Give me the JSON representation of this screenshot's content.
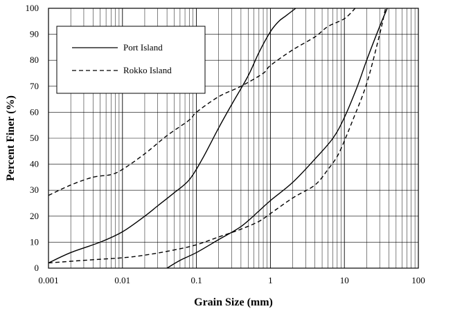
{
  "chart_data": {
    "type": "line",
    "xlabel": "Grain Size (mm)",
    "ylabel": "Percent Finer (%)",
    "xscale": "log",
    "xlim": [
      0.001,
      100
    ],
    "ylim": [
      0,
      100
    ],
    "grid": "on",
    "legend_placement": "top-left",
    "x_tick_labels": [
      "0.001",
      "0.01",
      "0.1",
      "1",
      "10",
      "100"
    ],
    "y_tick_labels": [
      "0",
      "10",
      "20",
      "30",
      "40",
      "50",
      "60",
      "70",
      "80",
      "90",
      "100"
    ],
    "series": [
      {
        "name": "Port Island",
        "style": "solid",
        "color": "#000000",
        "curves": [
          {
            "x": [
              0.001,
              0.002,
              0.005,
              0.01,
              0.02,
              0.03,
              0.05,
              0.08,
              0.12,
              0.2,
              0.3,
              0.5,
              0.7,
              1.0,
              1.3,
              1.6,
              2.2
            ],
            "y": [
              2,
              6,
              10,
              14,
              20,
              24,
              29,
              34,
              42,
              54,
              63,
              74,
              83,
              91,
              95,
              97,
              100
            ]
          },
          {
            "x": [
              0.04,
              0.06,
              0.1,
              0.2,
              0.4,
              0.7,
              1.0,
              2.0,
              4.0,
              7.0,
              10.0,
              15.0,
              20.0,
              30.0,
              38.0
            ],
            "y": [
              0,
              3,
              6,
              11,
              16,
              22,
              26,
              33,
              42,
              50,
              58,
              70,
              80,
              93,
              100
            ]
          }
        ]
      },
      {
        "name": "Rokko Island",
        "style": "dashed",
        "color": "#000000",
        "curves": [
          {
            "x": [
              0.001,
              0.002,
              0.004,
              0.007,
              0.01,
              0.02,
              0.04,
              0.08,
              0.1,
              0.2,
              0.4,
              0.8,
              1.0,
              2.0,
              4.0,
              6.0,
              10.0,
              14.0
            ],
            "y": [
              28,
              32,
              35,
              36,
              38,
              44,
              51,
              57,
              60,
              66,
              70,
              75,
              78,
              84,
              89,
              93,
              96,
              100
            ]
          },
          {
            "x": [
              0.001,
              0.003,
              0.01,
              0.02,
              0.05,
              0.1,
              0.2,
              0.4,
              0.7,
              1.0,
              2.0,
              4.0,
              6.0,
              8.0,
              10.0,
              13.0,
              20.0,
              30.0,
              36.0
            ],
            "y": [
              2,
              3,
              4,
              5,
              7,
              9,
              12,
              15,
              18,
              21,
              27,
              32,
              38,
              43,
              49,
              57,
              71,
              90,
              100
            ]
          }
        ]
      }
    ]
  }
}
